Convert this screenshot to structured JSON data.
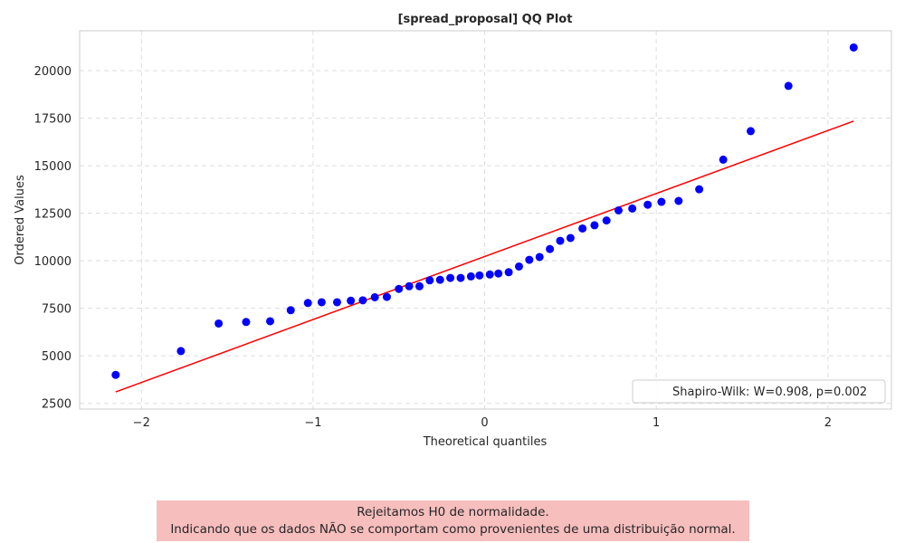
{
  "chart_data": {
    "type": "scatter",
    "title": "[spread_proposal] QQ Plot",
    "xlabel": "Theoretical quantiles",
    "ylabel": "Ordered Values",
    "xlim": [
      -2.36,
      2.37
    ],
    "ylim": [
      2200,
      22100
    ],
    "xticks": [
      -2,
      -1,
      0,
      1,
      2
    ],
    "xtick_labels": [
      "−2",
      "−1",
      "0",
      "1",
      "2"
    ],
    "yticks": [
      2500,
      5000,
      7500,
      10000,
      12500,
      15000,
      17500,
      20000
    ],
    "grid": true,
    "legend_placement": "lower-right",
    "points": {
      "color": "#0000ff",
      "x": [
        -2.15,
        -1.77,
        -1.55,
        -1.39,
        -1.25,
        -1.13,
        -1.03,
        -0.95,
        -0.86,
        -0.78,
        -0.71,
        -0.64,
        -0.57,
        -0.5,
        -0.44,
        -0.38,
        -0.32,
        -0.26,
        -0.2,
        -0.14,
        -0.08,
        -0.03,
        0.03,
        0.08,
        0.14,
        0.2,
        0.26,
        0.32,
        0.38,
        0.44,
        0.5,
        0.57,
        0.64,
        0.71,
        0.78,
        0.86,
        0.95,
        1.03,
        1.13,
        1.25,
        1.39,
        1.55,
        1.77,
        2.15
      ],
      "y": [
        4000,
        5250,
        6700,
        6780,
        6820,
        7400,
        7780,
        7820,
        7820,
        7900,
        7920,
        8080,
        8100,
        8520,
        8660,
        8660,
        8970,
        9000,
        9100,
        9100,
        9180,
        9230,
        9280,
        9330,
        9400,
        9700,
        10050,
        10200,
        10620,
        11050,
        11200,
        11700,
        11870,
        12120,
        12650,
        12750,
        12950,
        13100,
        13150,
        13760,
        15320,
        16820,
        19200,
        21220
      ]
    },
    "fit_line": {
      "color": "#ff0000",
      "x": [
        -2.15,
        2.15
      ],
      "y": [
        3100,
        17350
      ]
    },
    "legend": {
      "label": "Shapiro-Wilk: W=0.908, p=0.002"
    }
  },
  "note": {
    "line1": "Rejeitamos H0 de normalidade.",
    "line2": "Indicando que os dados NÃO se comportam como provenientes de uma distribuição normal.",
    "background": "#f7bebe"
  }
}
